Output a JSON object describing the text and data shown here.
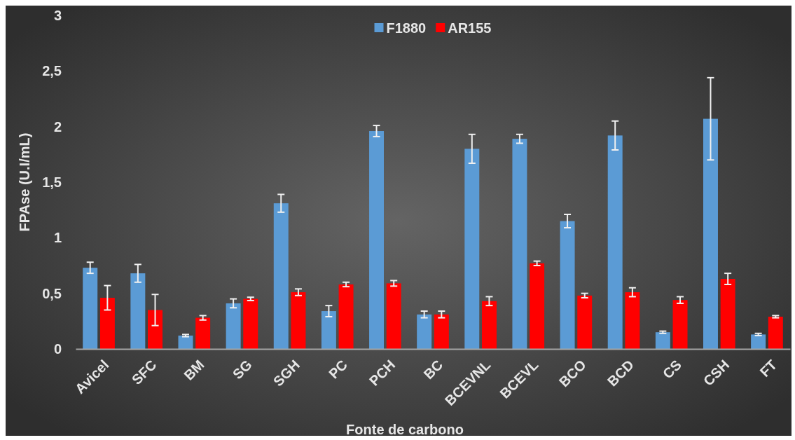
{
  "chart_data": {
    "type": "bar",
    "xlabel": "Fonte de carbono",
    "ylabel": "FPAse (U.I/mL)",
    "categories": [
      "Avicel",
      "SFC",
      "BM",
      "SG",
      "SGH",
      "PC",
      "PCH",
      "BC",
      "BCEVNL",
      "BCEVL",
      "BCO",
      "BCD",
      "CS",
      "CSH",
      "FT"
    ],
    "series": [
      {
        "name": "F1880",
        "color": "#5b9bd5",
        "values": [
          0.73,
          0.68,
          0.12,
          0.41,
          1.31,
          0.34,
          1.96,
          0.31,
          1.8,
          1.89,
          1.15,
          1.92,
          0.15,
          2.07,
          0.13
        ],
        "errors": [
          0.05,
          0.08,
          0.01,
          0.04,
          0.08,
          0.05,
          0.05,
          0.03,
          0.13,
          0.04,
          0.06,
          0.13,
          0.01,
          0.37,
          0.01
        ]
      },
      {
        "name": "AR155",
        "color": "#ff0000",
        "values": [
          0.46,
          0.35,
          0.28,
          0.45,
          0.51,
          0.58,
          0.59,
          0.31,
          0.43,
          0.77,
          0.48,
          0.51,
          0.44,
          0.63,
          0.29
        ],
        "errors": [
          0.11,
          0.14,
          0.02,
          0.015,
          0.03,
          0.02,
          0.025,
          0.03,
          0.04,
          0.02,
          0.02,
          0.04,
          0.03,
          0.05,
          0.01
        ]
      }
    ],
    "ylim": [
      0,
      3
    ],
    "yticks": [
      0,
      {
        "value": 0.5,
        "label": "0,5"
      },
      1,
      {
        "value": 1.5,
        "label": "1,5"
      },
      2,
      {
        "value": 2.5,
        "label": "2,5"
      },
      3
    ],
    "grid": false,
    "legend": "top"
  }
}
